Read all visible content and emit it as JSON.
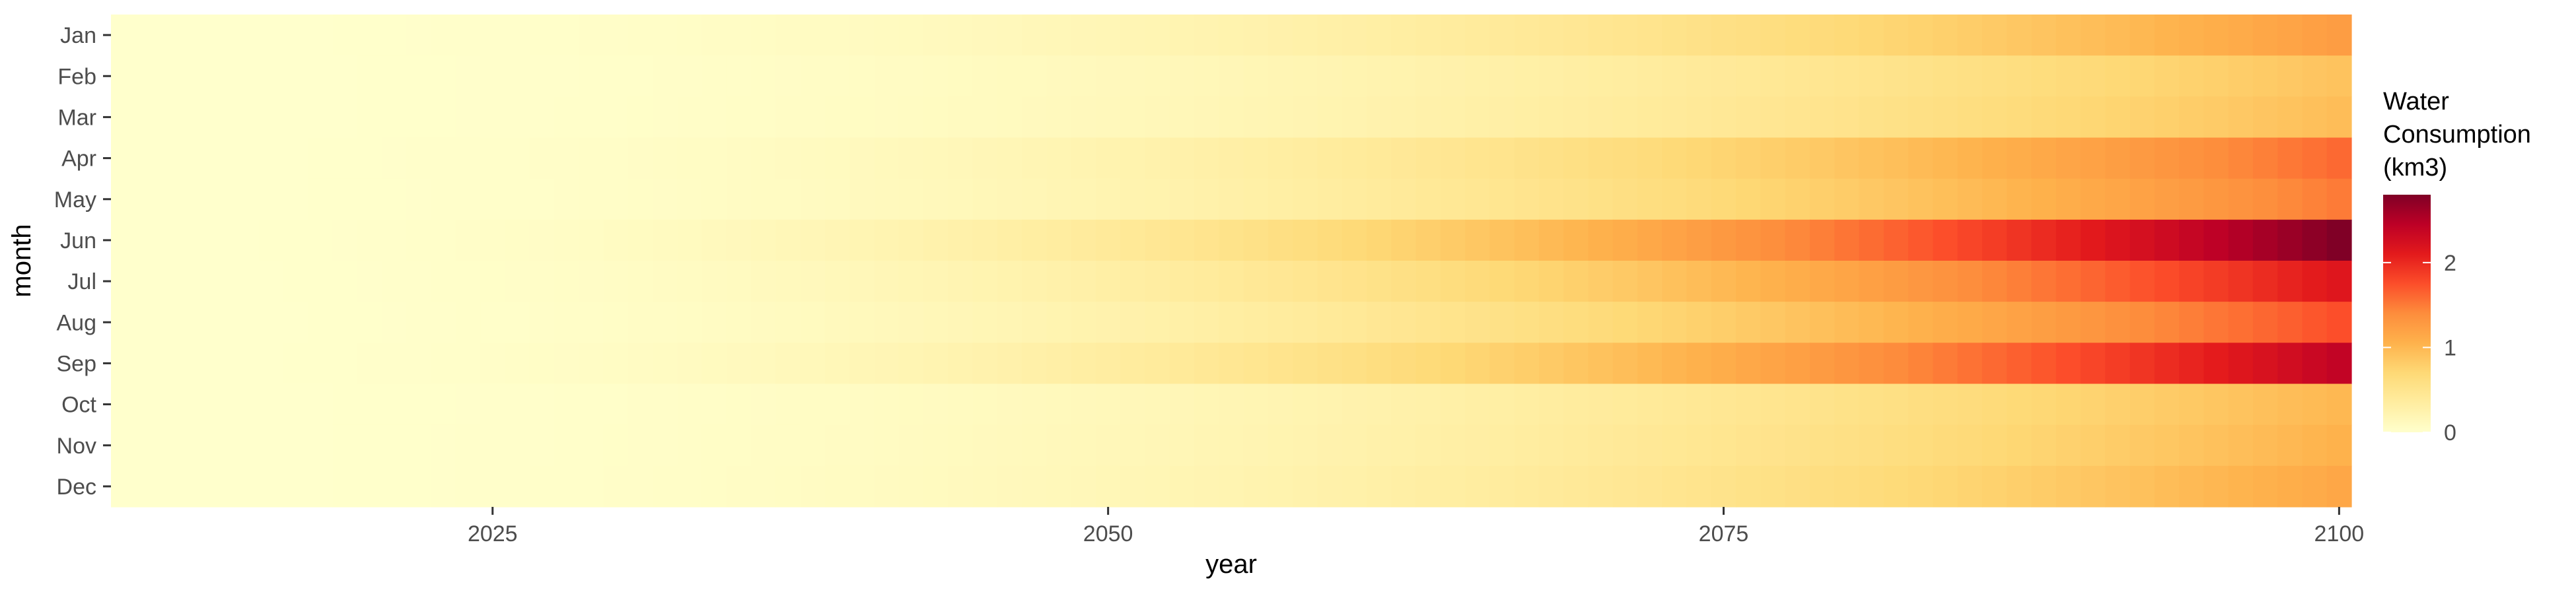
{
  "chart_data": {
    "type": "heatmap",
    "title": "",
    "xlabel": "year",
    "ylabel": "month",
    "x_ticks": [
      2025,
      2050,
      2075,
      2100
    ],
    "xlim": [
      2010,
      2100
    ],
    "months": [
      "Jan",
      "Feb",
      "Mar",
      "Apr",
      "May",
      "Jun",
      "Jul",
      "Aug",
      "Sep",
      "Oct",
      "Nov",
      "Dec"
    ],
    "series_rule": "value(year, month) = max_by_month * ((year - 2010) / 90) ^ 2.4, years 2010-2100 in 1-year steps",
    "max_value_by_month_km3": {
      "Jan": 1.25,
      "Feb": 0.9,
      "Mar": 0.95,
      "Apr": 1.6,
      "May": 1.5,
      "Jun": 2.8,
      "Jul": 2.15,
      "Aug": 1.75,
      "Sep": 2.4,
      "Oct": 1.0,
      "Nov": 1.05,
      "Dec": 1.15
    },
    "year_range": [
      2010,
      2100
    ],
    "legend": {
      "title_lines": [
        "Water",
        "Consumption",
        "(km3)"
      ],
      "ticks": [
        0,
        1,
        2
      ],
      "range": [
        0,
        2.8
      ],
      "position": "right"
    },
    "colors": {
      "scale": [
        "#FFFFCC",
        "#FFEDA0",
        "#FED976",
        "#FEB24C",
        "#FD8D3C",
        "#FC4E2A",
        "#E31A1C",
        "#BD0026",
        "#800026"
      ],
      "tick_text": "#4d4d4d",
      "tick_mark": "#333333"
    },
    "grid": false
  }
}
